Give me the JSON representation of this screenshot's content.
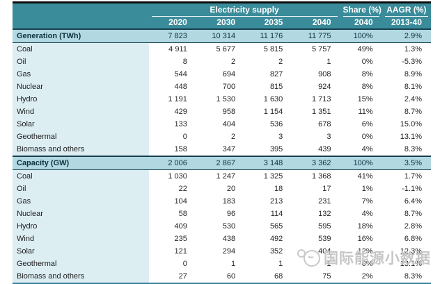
{
  "chart_data": {
    "type": "table",
    "title": "Electricity supply",
    "header": {
      "group_label": "Electricity supply",
      "share_label": "Share (%)",
      "aagr_label": "AAGR (%)",
      "year_cols": [
        "2020",
        "2030",
        "2035",
        "2040"
      ],
      "share_col": "2040",
      "aagr_col": "2013-40"
    },
    "rows": [
      {
        "label": "Generation (TWh)",
        "type": "section",
        "values": [
          "7 823",
          "10 314",
          "11 176",
          "11 775",
          "100%",
          "2.9%"
        ]
      },
      {
        "label": "Coal",
        "type": "data",
        "values": [
          "4 911",
          "5 677",
          "5 815",
          "5 757",
          "49%",
          "1.3%"
        ]
      },
      {
        "label": "Oil",
        "type": "data",
        "values": [
          "8",
          "2",
          "2",
          "1",
          "0%",
          "-5.3%"
        ]
      },
      {
        "label": "Gas",
        "type": "data",
        "values": [
          "544",
          "694",
          "827",
          "908",
          "8%",
          "8.9%"
        ]
      },
      {
        "label": "Nuclear",
        "type": "data",
        "values": [
          "448",
          "700",
          "815",
          "924",
          "8%",
          "8.1%"
        ]
      },
      {
        "label": "Hydro",
        "type": "data",
        "values": [
          "1 191",
          "1 530",
          "1 630",
          "1 713",
          "15%",
          "2.4%"
        ]
      },
      {
        "label": "Wind",
        "type": "data",
        "values": [
          "429",
          "958",
          "1 154",
          "1 351",
          "11%",
          "8.7%"
        ]
      },
      {
        "label": "Solar",
        "type": "data",
        "values": [
          "133",
          "404",
          "536",
          "678",
          "6%",
          "15.0%"
        ]
      },
      {
        "label": "Geothermal",
        "type": "data",
        "values": [
          "0",
          "2",
          "3",
          "3",
          "0%",
          "13.1%"
        ]
      },
      {
        "label": "Biomass and others",
        "type": "data",
        "values": [
          "158",
          "347",
          "395",
          "439",
          "4%",
          "8.3%"
        ]
      },
      {
        "label": "Capacity (GW)",
        "type": "section",
        "values": [
          "2 006",
          "2 867",
          "3 148",
          "3 362",
          "100%",
          "3.5%"
        ]
      },
      {
        "label": "Coal",
        "type": "data",
        "values": [
          "1 030",
          "1 247",
          "1 325",
          "1 368",
          "41%",
          "1.7%"
        ]
      },
      {
        "label": "Oil",
        "type": "data",
        "values": [
          "22",
          "20",
          "18",
          "17",
          "1%",
          "-1.1%"
        ]
      },
      {
        "label": "Gas",
        "type": "data",
        "values": [
          "104",
          "183",
          "213",
          "231",
          "7%",
          "6.4%"
        ]
      },
      {
        "label": "Nuclear",
        "type": "data",
        "values": [
          "58",
          "96",
          "114",
          "132",
          "4%",
          "8.7%"
        ]
      },
      {
        "label": "Hydro",
        "type": "data",
        "values": [
          "409",
          "530",
          "565",
          "595",
          "18%",
          "2.8%"
        ]
      },
      {
        "label": "Wind",
        "type": "data",
        "values": [
          "235",
          "438",
          "492",
          "539",
          "16%",
          "6.8%"
        ]
      },
      {
        "label": "Solar",
        "type": "data",
        "values": [
          "121",
          "294",
          "352",
          "404",
          "12%",
          "12.3%"
        ]
      },
      {
        "label": "Geothermal",
        "type": "data",
        "values": [
          "0",
          "1",
          "1",
          "1",
          "0%",
          "13.1%"
        ]
      },
      {
        "label": "Biomass and others",
        "type": "data",
        "values": [
          "27",
          "60",
          "68",
          "75",
          "2%",
          "8.3%"
        ]
      }
    ]
  },
  "watermark": {
    "text": "国际能源小数据"
  },
  "colors": {
    "header_teal": "#3a8c9a",
    "section_row": "#b2d9e2",
    "label_column": "#ddeef3",
    "dark_border": "#173f4d",
    "bottom_border": "#35819b"
  }
}
